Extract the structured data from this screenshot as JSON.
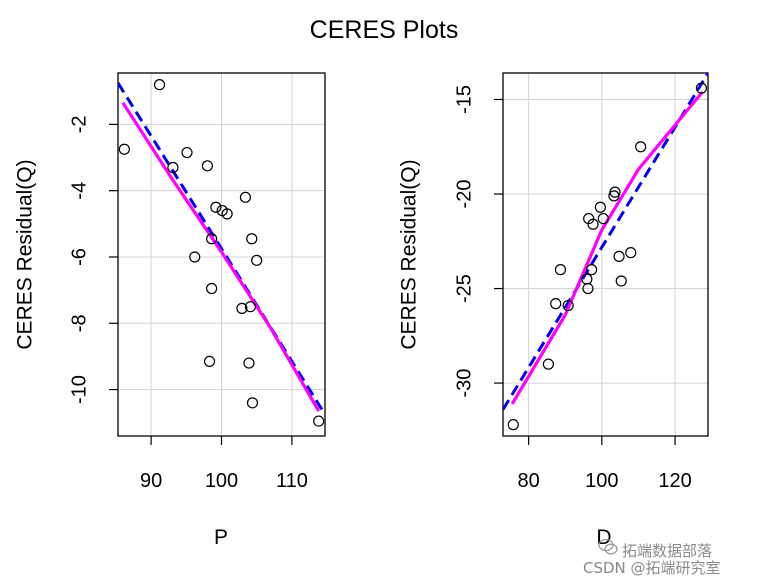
{
  "colors": {
    "points": "#000000",
    "dashed_fit": "#0000ee",
    "smooth": "#ff00ff",
    "grid": "#d3d3d3"
  },
  "chart_data": [
    {
      "type": "scatter",
      "title": "CERES Plots",
      "xlabel": "P",
      "ylabel": "CERES Residual(Q)",
      "xlim": [
        85.3,
        114.7
      ],
      "ylim": [
        -11.4,
        -0.45
      ],
      "xticks": [
        90,
        100,
        110
      ],
      "yticks": [
        -2,
        -4,
        -6,
        -8,
        -10
      ],
      "grid": true,
      "points": [
        {
          "x": 86.2,
          "y": -2.75
        },
        {
          "x": 91.2,
          "y": -0.8
        },
        {
          "x": 93.1,
          "y": -3.3
        },
        {
          "x": 95.1,
          "y": -2.85
        },
        {
          "x": 98.0,
          "y": -3.25
        },
        {
          "x": 96.2,
          "y": -6.0
        },
        {
          "x": 99.2,
          "y": -4.5
        },
        {
          "x": 100.1,
          "y": -4.6
        },
        {
          "x": 100.8,
          "y": -4.7
        },
        {
          "x": 98.6,
          "y": -5.45
        },
        {
          "x": 98.6,
          "y": -6.95
        },
        {
          "x": 98.3,
          "y": -9.15
        },
        {
          "x": 103.4,
          "y": -4.2
        },
        {
          "x": 104.3,
          "y": -5.45
        },
        {
          "x": 105.0,
          "y": -6.1
        },
        {
          "x": 102.9,
          "y": -7.55
        },
        {
          "x": 104.1,
          "y": -7.5
        },
        {
          "x": 103.9,
          "y": -9.2
        },
        {
          "x": 104.4,
          "y": -10.4
        },
        {
          "x": 113.8,
          "y": -10.95
        }
      ],
      "fit_line": {
        "x": [
          85.3,
          114.7
        ],
        "y": [
          -0.75,
          -10.75
        ]
      },
      "smooth_line": {
        "x": [
          86.0,
          93.0,
          100.0,
          107.0,
          113.8
        ],
        "y": [
          -1.35,
          -3.65,
          -5.85,
          -8.15,
          -10.65
        ]
      }
    },
    {
      "type": "scatter",
      "title": "",
      "xlabel": "D",
      "ylabel": "CERES Residual(Q)",
      "xlim": [
        73.0,
        129.0
      ],
      "ylim": [
        -32.8,
        -13.6
      ],
      "xticks": [
        80,
        100,
        120
      ],
      "yticks": [
        -15,
        -20,
        -25,
        -30
      ],
      "grid": true,
      "points": [
        {
          "x": 75.8,
          "y": -32.2
        },
        {
          "x": 85.4,
          "y": -29.0
        },
        {
          "x": 87.4,
          "y": -25.8
        },
        {
          "x": 88.7,
          "y": -24.0
        },
        {
          "x": 90.8,
          "y": -25.9
        },
        {
          "x": 95.9,
          "y": -24.5
        },
        {
          "x": 96.2,
          "y": -25.0
        },
        {
          "x": 97.2,
          "y": -24.0
        },
        {
          "x": 96.4,
          "y": -21.3
        },
        {
          "x": 97.6,
          "y": -21.6
        },
        {
          "x": 99.6,
          "y": -20.7
        },
        {
          "x": 100.4,
          "y": -21.3
        },
        {
          "x": 103.3,
          "y": -20.1
        },
        {
          "x": 103.6,
          "y": -19.9
        },
        {
          "x": 104.7,
          "y": -23.3
        },
        {
          "x": 105.3,
          "y": -24.6
        },
        {
          "x": 107.9,
          "y": -23.1
        },
        {
          "x": 110.6,
          "y": -17.5
        },
        {
          "x": 127.2,
          "y": -14.4
        }
      ],
      "fit_line": {
        "x": [
          73.0,
          129.0
        ],
        "y": [
          -31.4,
          -13.6
        ]
      },
      "smooth_line": {
        "x": [
          75.5,
          90.0,
          100.0,
          110.0,
          127.5
        ],
        "y": [
          -31.1,
          -26.4,
          -21.9,
          -18.7,
          -14.6
        ]
      }
    }
  ],
  "watermark": {
    "line1": "拓端数据部落",
    "line2": "CSDN @拓端研究室"
  }
}
